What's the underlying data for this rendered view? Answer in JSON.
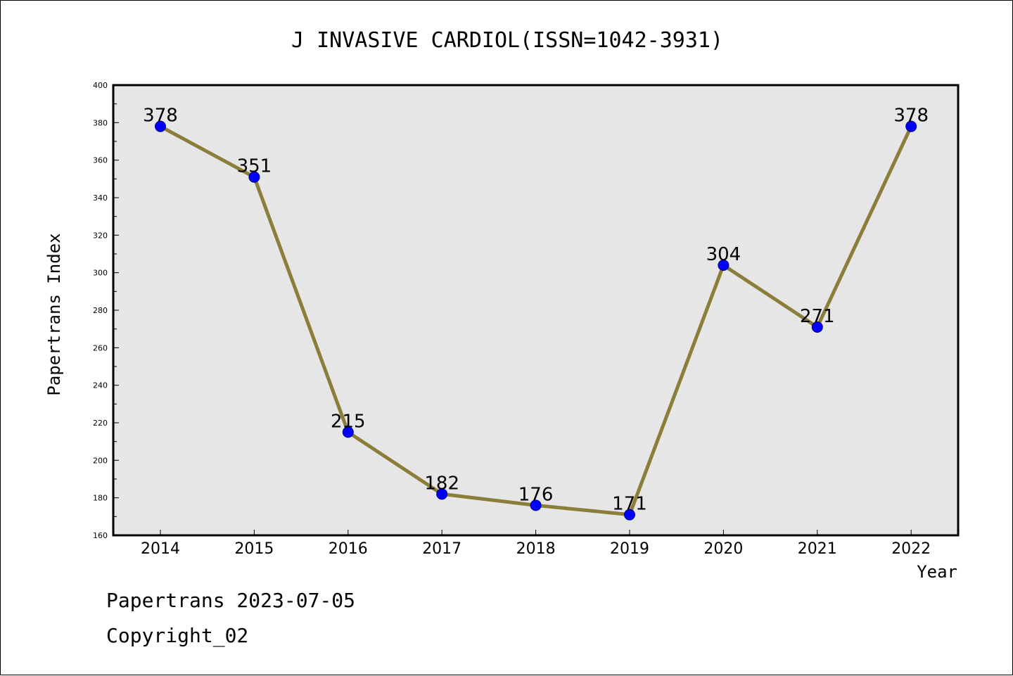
{
  "chart_data": {
    "type": "line",
    "title": "J INVASIVE CARDIOL(ISSN=1042-3931)",
    "xlabel": "Year",
    "ylabel": "Papertrans Index",
    "categories": [
      "2014",
      "2015",
      "2016",
      "2017",
      "2018",
      "2019",
      "2020",
      "2021",
      "2022"
    ],
    "values": [
      378,
      351,
      215,
      182,
      176,
      171,
      304,
      271,
      378
    ],
    "data_labels": [
      "378",
      "351",
      "215",
      "182",
      "176",
      "171",
      "304",
      "271",
      "378"
    ],
    "ylim": [
      160,
      400
    ],
    "yticks": [
      160,
      180,
      200,
      220,
      240,
      260,
      280,
      300,
      320,
      340,
      360,
      380,
      400
    ],
    "grid": false,
    "legend": "none",
    "colors": {
      "line": "#8b7d3a",
      "marker_fill": "#0000ff",
      "marker_stroke": "#000080",
      "plot_background": "#e6e6e6",
      "axes": "#000000"
    }
  },
  "footer": {
    "line1": "Papertrans 2023-07-05",
    "line2": "Copyright_02"
  }
}
